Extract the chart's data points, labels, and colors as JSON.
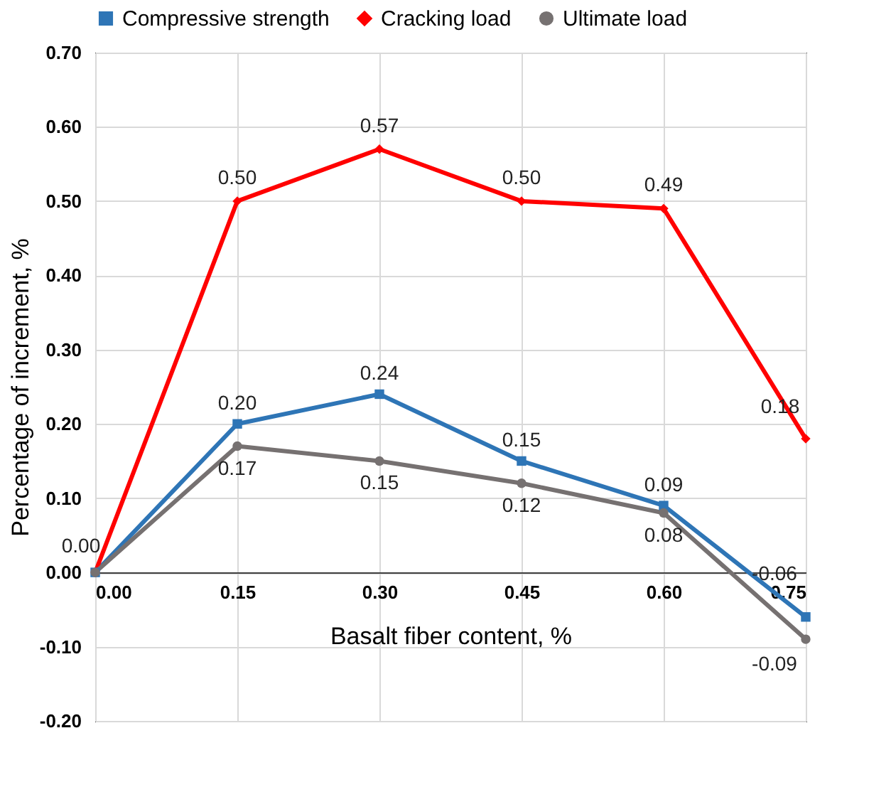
{
  "chart_data": {
    "type": "line",
    "xlabel": "Basalt fiber content, %",
    "ylabel": "Percentage of increment, %",
    "x": [
      0,
      0.15,
      0.3,
      0.45,
      0.6,
      0.75
    ],
    "series": [
      {
        "name": "Compressive strength",
        "color": "#2e75b6",
        "marker": "square",
        "values": [
          0,
          0.2,
          0.24,
          0.15,
          0.09,
          -0.06
        ],
        "value_labels": [
          "0.00",
          "0.20",
          "0.24",
          "0.15",
          "0.09",
          "-0.06"
        ]
      },
      {
        "name": "Cracking load",
        "color": "#ff0000",
        "marker": "diamond",
        "values": [
          0,
          0.5,
          0.57,
          0.5,
          0.49,
          0.18
        ],
        "value_labels": [
          null,
          "0.50",
          "0.57",
          "0.50",
          "0.49",
          "0.18"
        ]
      },
      {
        "name": "Ultimate load",
        "color": "#767171",
        "marker": "circle",
        "values": [
          0,
          0.17,
          0.15,
          0.12,
          0.08,
          -0.09
        ],
        "value_labels": [
          null,
          "0.17",
          "0.15",
          "0.12",
          "0.08",
          "-0.09"
        ]
      }
    ],
    "xlim": [
      0,
      0.75
    ],
    "xticks": [
      {
        "value": 0,
        "label": "0.00"
      },
      {
        "value": 0.15,
        "label": "0.15"
      },
      {
        "value": 0.3,
        "label": "0.30"
      },
      {
        "value": 0.45,
        "label": "0.45"
      },
      {
        "value": 0.6,
        "label": "0.60"
      },
      {
        "value": 0.75,
        "label": "0.75"
      }
    ],
    "ylim": [
      -0.2,
      0.7
    ],
    "yticks": [
      {
        "value": -0.2,
        "label": "-0.20"
      },
      {
        "value": -0.1,
        "label": "-0.10"
      },
      {
        "value": 0,
        "label": "0.00"
      },
      {
        "value": 0.1,
        "label": "0.10"
      },
      {
        "value": 0.2,
        "label": "0.20"
      },
      {
        "value": 0.3,
        "label": "0.30"
      },
      {
        "value": 0.4,
        "label": "0.40"
      },
      {
        "value": 0.5,
        "label": "0.50"
      },
      {
        "value": 0.6,
        "label": "0.60"
      },
      {
        "value": 0.7,
        "label": "0.70"
      }
    ],
    "grid": true,
    "legend": "top",
    "line_style": "solid"
  }
}
